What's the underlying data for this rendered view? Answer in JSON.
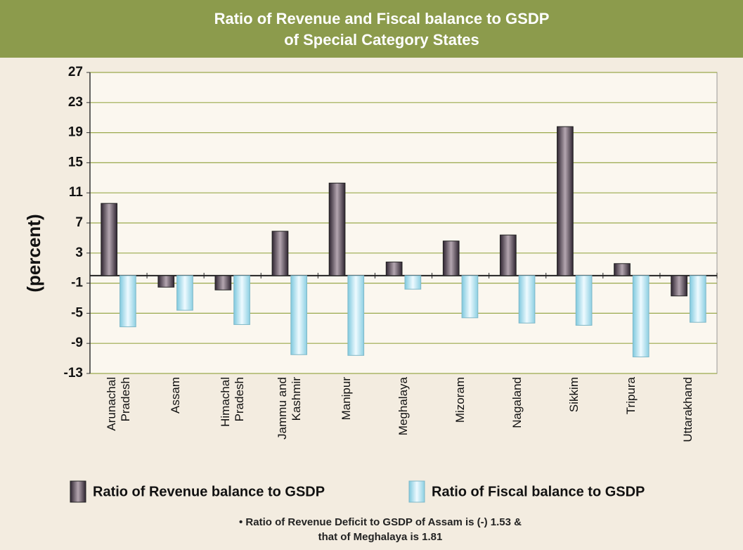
{
  "chart_data": {
    "type": "bar",
    "title": [
      "Ratio of Revenue and Fiscal balance to GSDP",
      "of Special Category States"
    ],
    "y_label": "(percent)",
    "categories": [
      "Arunachal Pradesh",
      "Assam",
      "Himachal Pradesh",
      "Jammu and Kashmir",
      "Manipur",
      "Meghalaya",
      "Mizoram",
      "Nagaland",
      "Sikkim",
      "Tripura",
      "Uttarakhand"
    ],
    "series": [
      {
        "name": "Ratio of Revenue balance to GSDP",
        "color": "#5c4b57",
        "values": [
          9.6,
          -1.53,
          -1.9,
          5.9,
          12.3,
          1.81,
          4.6,
          5.4,
          19.8,
          1.6,
          -2.7
        ]
      },
      {
        "name": "Ratio of Fiscal balance to GSDP",
        "color": "#bfe7f2",
        "values": [
          -6.8,
          -4.6,
          -6.5,
          -10.5,
          -10.6,
          -1.8,
          -5.6,
          -6.3,
          -6.6,
          -10.8,
          -6.2
        ]
      }
    ],
    "ylim": [
      -13,
      27
    ],
    "yticks": [
      -13,
      -9,
      -5,
      -1,
      3,
      7,
      11,
      15,
      19,
      23,
      27
    ],
    "grid": true,
    "notes": [
      "• Ratio of Revenue Deficit to GSDP of Assam is  (-) 1.53 &",
      "that of Meghalaya is 1.81"
    ]
  }
}
